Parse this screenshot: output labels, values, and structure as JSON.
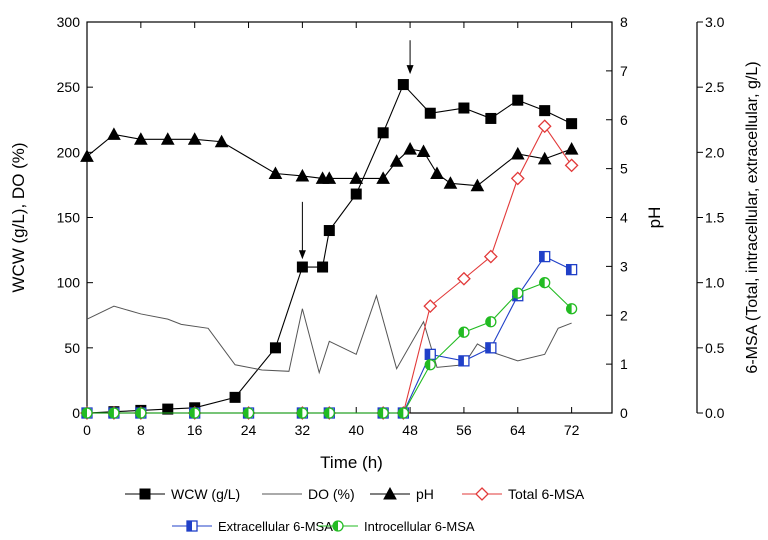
{
  "chart_data": {
    "type": "line",
    "xlabel": "Time (h)",
    "x_ticks": [
      "0",
      "8",
      "16",
      "24",
      "32",
      "40",
      "48",
      "56",
      "64",
      "72"
    ],
    "xlim": [
      0,
      78
    ],
    "axes": {
      "left": {
        "label": "WCW (g/L), DO (%)",
        "ylim": [
          0,
          300
        ],
        "ticks": [
          "0",
          "50",
          "100",
          "150",
          "200",
          "250",
          "300"
        ]
      },
      "right1": {
        "label": "pH",
        "ylim": [
          0,
          8
        ],
        "ticks": [
          "0",
          "1",
          "2",
          "3",
          "4",
          "5",
          "6",
          "7",
          "8"
        ]
      },
      "right2": {
        "label": "6-MSA (Total, intracellular, extracellular, g/L)",
        "ylim": [
          0,
          3.0
        ],
        "ticks": [
          "0.0",
          "0.5",
          "1.0",
          "1.5",
          "2.0",
          "2.5",
          "3.0"
        ]
      }
    },
    "series": [
      {
        "name": "WCW (g/L)",
        "axis": "left",
        "color": "#000000",
        "marker": "square-filled",
        "x": [
          0,
          4,
          8,
          12,
          16,
          22,
          28,
          32,
          35,
          36,
          40,
          44,
          47,
          51,
          56,
          60,
          64,
          68,
          72
        ],
        "y": [
          0,
          1,
          2,
          3,
          4,
          12,
          50,
          112,
          112,
          140,
          168,
          215,
          252,
          230,
          234,
          226,
          240,
          232,
          222
        ]
      },
      {
        "name": "DO (%)",
        "axis": "left",
        "color": "#555555",
        "marker": "none",
        "x": [
          0,
          4,
          8,
          12,
          14,
          18,
          22,
          26,
          30,
          32,
          34.5,
          36,
          40,
          43,
          46,
          50,
          52,
          56,
          58,
          60,
          64,
          68,
          70,
          72
        ],
        "y": [
          72,
          82,
          76,
          72,
          68,
          65,
          37,
          33,
          32,
          80,
          31,
          55,
          45,
          90,
          34,
          70,
          35,
          37,
          53,
          47,
          40,
          45,
          65,
          69
        ]
      },
      {
        "name": "pH",
        "axis": "right1",
        "color": "#000000",
        "marker": "triangle-filled",
        "x": [
          0,
          4,
          8,
          12,
          16,
          20,
          28,
          32,
          35,
          36,
          40,
          44,
          46,
          48,
          50,
          52,
          54,
          58,
          64,
          68,
          72
        ],
        "y": [
          5.25,
          5.7,
          5.6,
          5.6,
          5.6,
          5.55,
          4.9,
          4.85,
          4.8,
          4.8,
          4.8,
          4.8,
          5.15,
          5.4,
          5.35,
          4.9,
          4.7,
          4.65,
          5.3,
          5.2,
          5.4
        ]
      },
      {
        "name": "Total 6-MSA",
        "axis": "right2",
        "color": "#e23a3a",
        "marker": "diamond-open",
        "x": [
          0,
          4,
          8,
          16,
          24,
          32,
          36,
          44,
          47,
          51,
          56,
          60,
          64,
          68,
          72
        ],
        "y": [
          0,
          0,
          0,
          0,
          0,
          0,
          0,
          0,
          0,
          0.82,
          1.03,
          1.2,
          1.8,
          2.2,
          1.9
        ]
      },
      {
        "name": "Extracellular 6-MSA",
        "axis": "right2",
        "color": "#2040c8",
        "marker": "square-half",
        "x": [
          0,
          4,
          8,
          16,
          24,
          32,
          36,
          44,
          47,
          51,
          56,
          60,
          64,
          68,
          72
        ],
        "y": [
          0,
          0,
          0,
          0,
          0,
          0,
          0,
          0,
          0,
          0.45,
          0.4,
          0.5,
          0.9,
          1.2,
          1.1
        ]
      },
      {
        "name": "Introcellular 6-MSA",
        "axis": "right2",
        "color": "#22bb22",
        "marker": "circle-half",
        "x": [
          0,
          4,
          8,
          16,
          24,
          32,
          36,
          44,
          47,
          51,
          56,
          60,
          64,
          68,
          72
        ],
        "y": [
          0,
          0,
          0,
          0,
          0,
          0,
          0,
          0,
          0,
          0.37,
          0.62,
          0.7,
          0.92,
          1.0,
          0.8
        ]
      }
    ],
    "annotations": [
      {
        "type": "arrow-down",
        "x": 32,
        "axis": "left",
        "y_tip": 118,
        "y_tail": 162
      },
      {
        "type": "arrow-down",
        "x": 48,
        "axis": "left",
        "y_tip": 260,
        "y_tail": 286
      }
    ],
    "legend": {
      "placement": "bottom",
      "rows": [
        [
          "WCW (g/L)",
          "DO (%)",
          "pH",
          "Total 6-MSA"
        ],
        [
          "Extracellular 6-MSA",
          "Introcellular 6-MSA"
        ]
      ]
    },
    "grid": false
  }
}
